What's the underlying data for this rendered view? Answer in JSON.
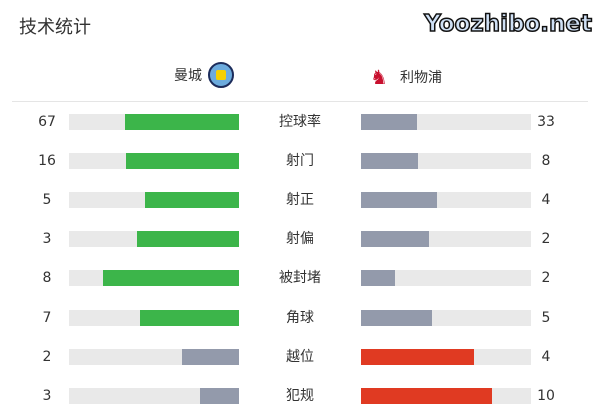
{
  "title": "技术统计",
  "home": {
    "name": "曼城",
    "logo": "manchester-city-crest"
  },
  "away": {
    "name": "利物浦",
    "logo": "liverpool-liverbird-crest"
  },
  "colors": {
    "leading": "#3cb54a",
    "trailing": "#939aab",
    "away_leading": "#e03a22",
    "track": "#e9e9e9"
  },
  "stats": [
    {
      "label": "控球率",
      "home": "67",
      "away": "33",
      "home_color": "#3cb54a",
      "away_color": "#939aab"
    },
    {
      "label": "射门",
      "home": "16",
      "away": "8",
      "home_color": "#3cb54a",
      "away_color": "#939aab"
    },
    {
      "label": "射正",
      "home": "5",
      "away": "4",
      "home_color": "#3cb54a",
      "away_color": "#939aab"
    },
    {
      "label": "射偏",
      "home": "3",
      "away": "2",
      "home_color": "#3cb54a",
      "away_color": "#939aab"
    },
    {
      "label": "被封堵",
      "home": "8",
      "away": "2",
      "home_color": "#3cb54a",
      "away_color": "#939aab"
    },
    {
      "label": "角球",
      "home": "7",
      "away": "5",
      "home_color": "#3cb54a",
      "away_color": "#939aab"
    },
    {
      "label": "越位",
      "home": "2",
      "away": "4",
      "home_color": "#939aab",
      "away_color": "#e03a22"
    },
    {
      "label": "犯规",
      "home": "3",
      "away": "10",
      "home_color": "#939aab",
      "away_color": "#e03a22"
    }
  ],
  "watermark": "Yoozhibo.net"
}
